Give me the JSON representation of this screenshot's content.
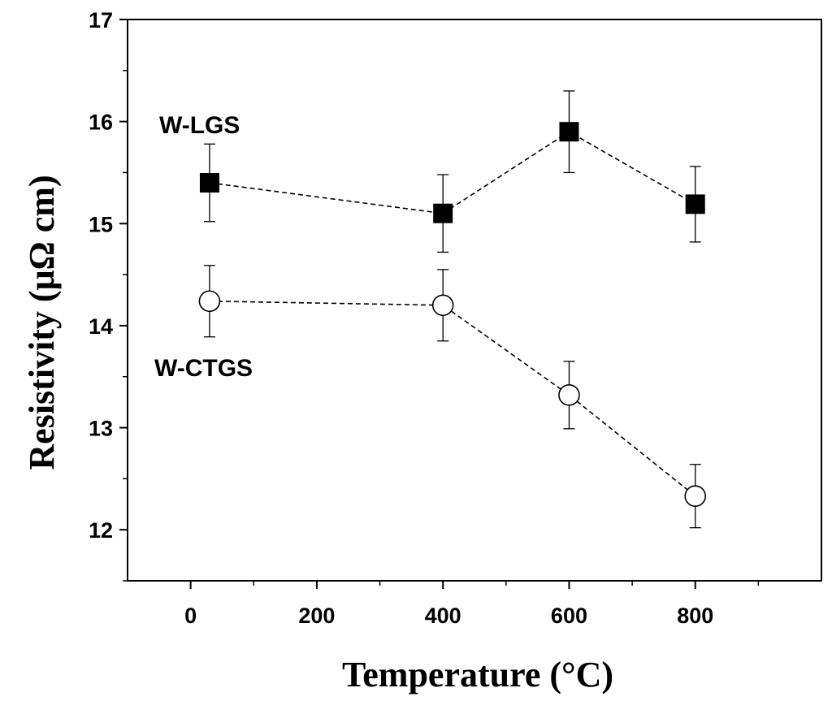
{
  "chart_data": {
    "type": "scatter",
    "title": "",
    "xlabel": "Temperature (°C)",
    "ylabel": "Resistivity (μΩ cm)",
    "xlim": [
      -100,
      1000
    ],
    "ylim": [
      11.5,
      17
    ],
    "xticks": [
      0,
      200,
      400,
      600,
      800
    ],
    "yticks": [
      12,
      13,
      14,
      15,
      16,
      17
    ],
    "xtick_labels": [
      "0",
      "200",
      "400",
      "600",
      "800"
    ],
    "ytick_labels": [
      "12",
      "13",
      "14",
      "15",
      "16",
      "17"
    ],
    "grid": false,
    "series": [
      {
        "name": "W-LGS",
        "marker": "filled-square",
        "line": "dashed",
        "color": "#000000",
        "x": [
          30,
          400,
          600,
          800
        ],
        "y": [
          15.4,
          15.1,
          15.9,
          15.19
        ],
        "yerr": [
          0.38,
          0.38,
          0.4,
          0.37
        ]
      },
      {
        "name": "W-CTGS",
        "marker": "open-circle",
        "line": "dashed",
        "color": "#000000",
        "x": [
          30,
          400,
          600,
          800
        ],
        "y": [
          14.24,
          14.2,
          13.32,
          12.33
        ],
        "yerr": [
          0.35,
          0.35,
          0.33,
          0.31
        ]
      }
    ]
  }
}
